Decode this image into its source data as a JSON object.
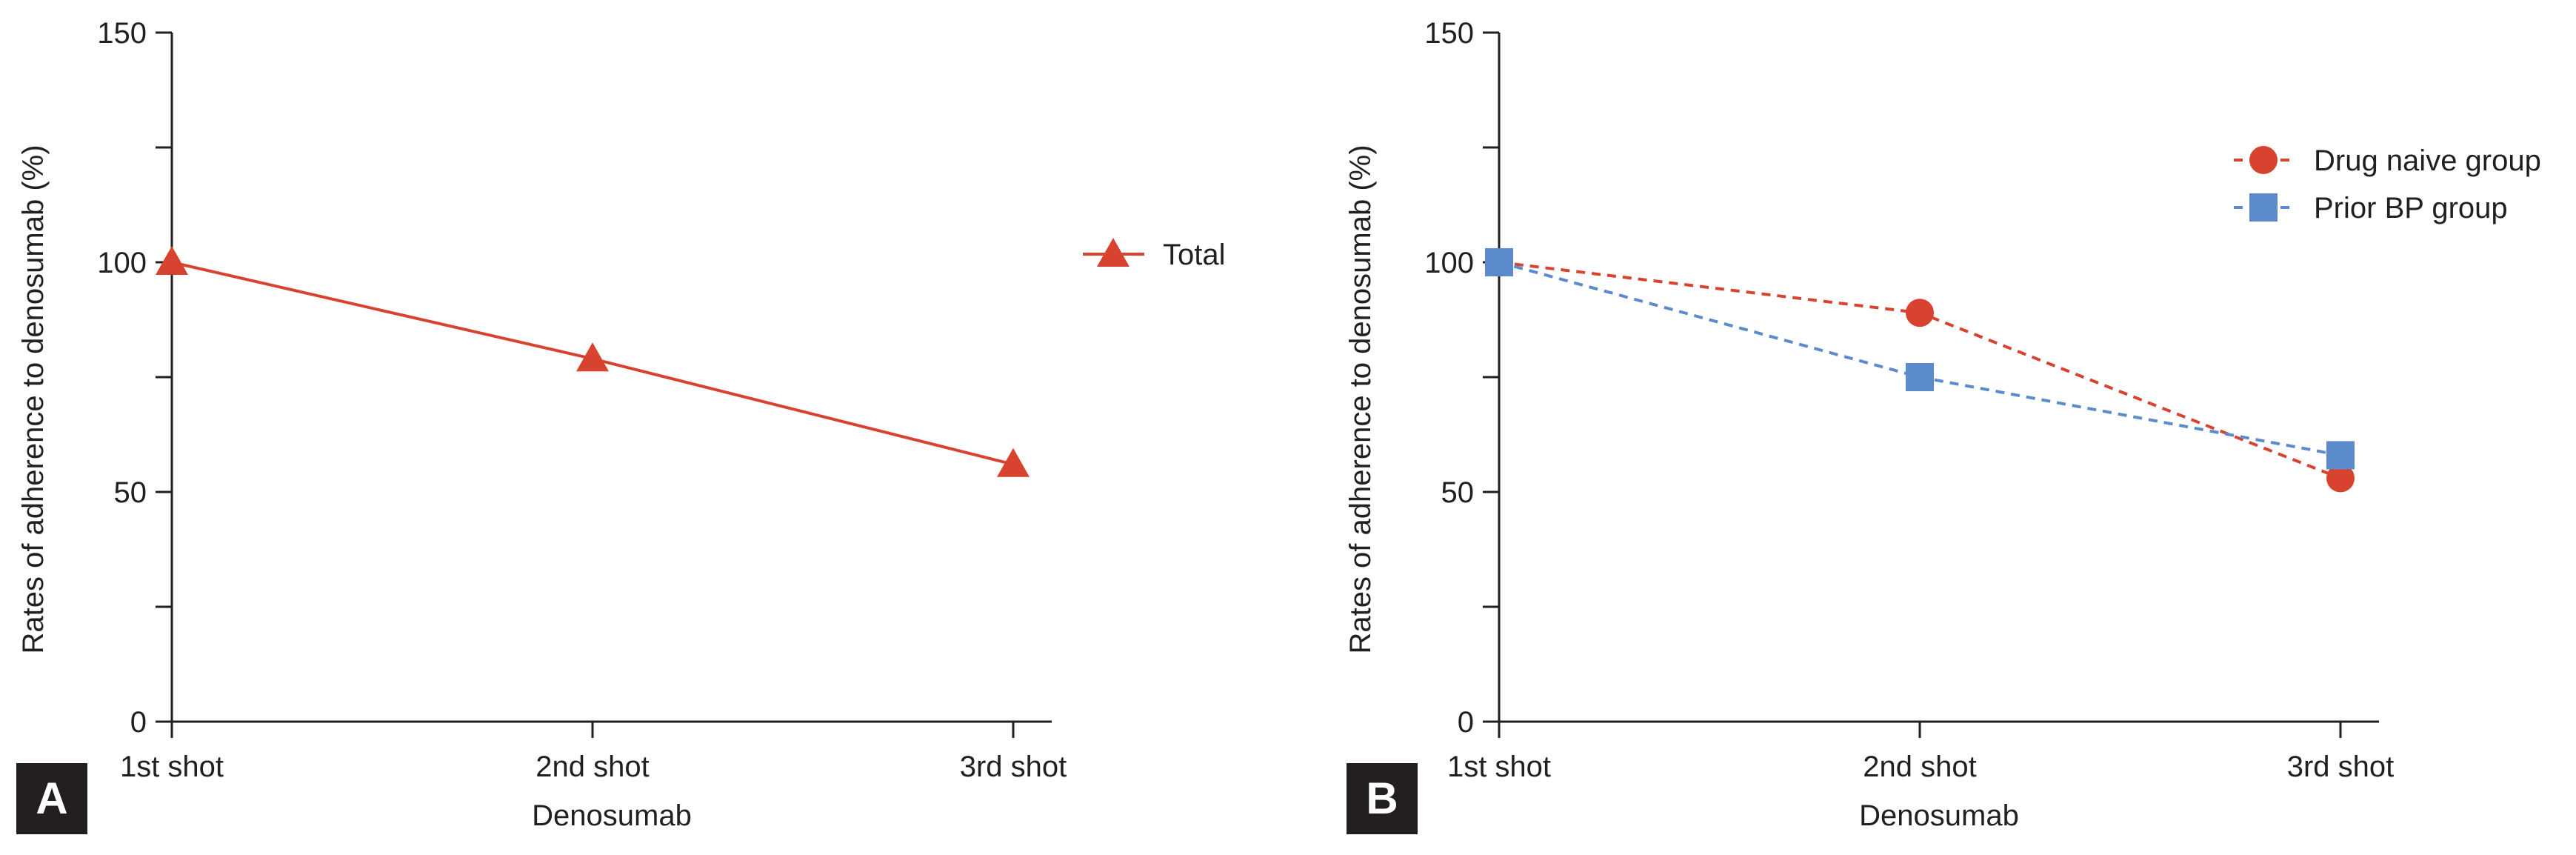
{
  "colors": {
    "red": "#d7432f",
    "blue": "#5b8bcc",
    "axis": "#231f20",
    "panel_label_bg": "#231f20",
    "panel_label_text": "#ffffff"
  },
  "chart_data": [
    {
      "type": "line",
      "panel_label": "A",
      "xlabel": "Denosumab",
      "ylabel": "Rates of adherence to denosumab (%)",
      "ylim": [
        0,
        150
      ],
      "yticks": [
        0,
        50,
        100,
        150
      ],
      "categories": [
        "1st shot",
        "2nd shot",
        "3rd shot"
      ],
      "series": [
        {
          "name": "Total",
          "values": [
            100,
            79,
            56
          ],
          "marker": "triangle",
          "line": "solid",
          "color": "#d7432f"
        }
      ],
      "legend": "right"
    },
    {
      "type": "line",
      "panel_label": "B",
      "xlabel": "Denosumab",
      "ylabel": "Rates of adherence to denosumab (%)",
      "ylim": [
        0,
        150
      ],
      "yticks": [
        0,
        50,
        100,
        150
      ],
      "categories": [
        "1st shot",
        "2nd shot",
        "3rd shot"
      ],
      "series": [
        {
          "name": "Drug naive group",
          "values": [
            100,
            89,
            53
          ],
          "marker": "circle",
          "line": "dashed",
          "color": "#d7432f"
        },
        {
          "name": "Prior BP group",
          "values": [
            100,
            75,
            58
          ],
          "marker": "square",
          "line": "dashed",
          "color": "#5b8bcc"
        }
      ],
      "legend": "top-right"
    }
  ]
}
